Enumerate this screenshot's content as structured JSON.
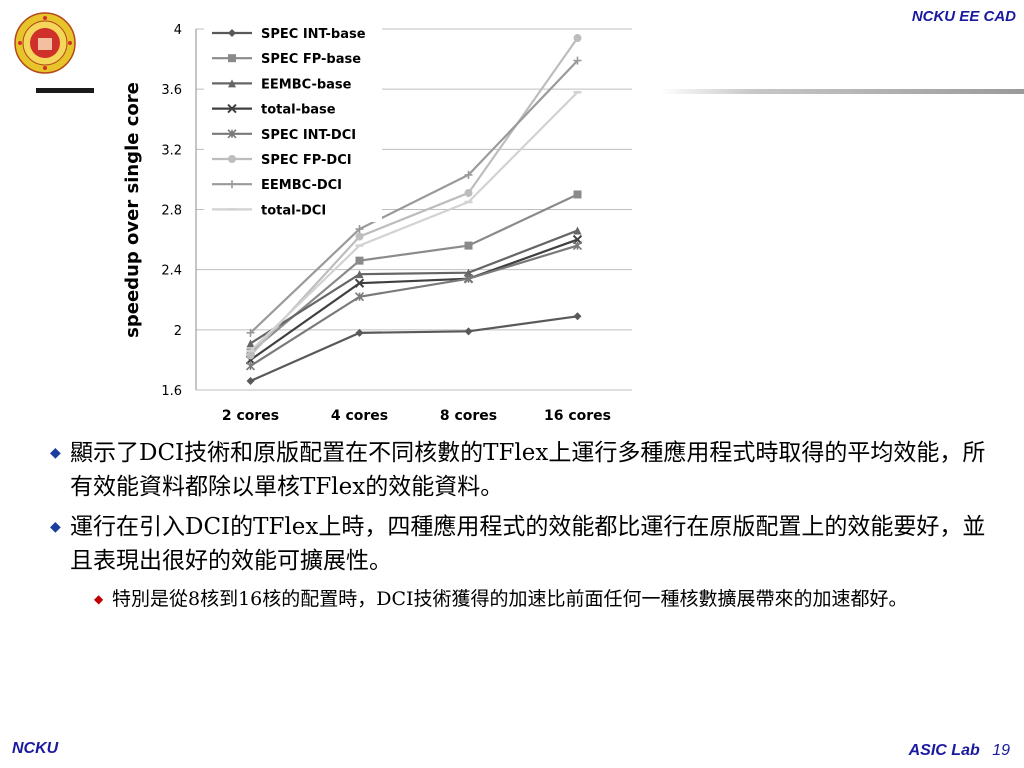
{
  "header": {
    "brand": "NCKU EE CAD"
  },
  "footer": {
    "left": "NCKU",
    "lab": "ASIC Lab",
    "page": "19"
  },
  "bullets": [
    {
      "text": "顯示了DCI技術和原版配置在不同核數的TFlex上運行多種應用程式時取得的平均效能，所有效能資料都除以單核TFlex的效能資料。"
    },
    {
      "text": "運行在引入DCI的TFlex上時，四種應用程式的效能都比運行在原版配置上的效能要好，並且表現出很好的效能可擴展性。"
    }
  ],
  "sub_bullets": [
    {
      "text": "特別是從8核到16核的配置時，DCI技術獲得的加速比前面任何一種核數擴展帶來的加速都好。"
    }
  ],
  "chart_data": {
    "type": "line",
    "categories": [
      "2 cores",
      "4 cores",
      "8 cores",
      "16 cores"
    ],
    "ylabel": "speedup over single core",
    "xlabel": "",
    "ylim": [
      1.6,
      4
    ],
    "yticks": [
      "1.6",
      "2",
      "2.4",
      "2.8",
      "3.2",
      "3.6",
      "4"
    ],
    "grid": true,
    "legend_position": "top-left",
    "series": [
      {
        "name": "SPEC INT-base",
        "values": [
          1.66,
          1.98,
          1.99,
          2.09
        ],
        "color": "#595959",
        "marker": "diamond"
      },
      {
        "name": "SPEC FP-base",
        "values": [
          1.85,
          2.46,
          2.56,
          2.9
        ],
        "color": "#8a8a8a",
        "marker": "square"
      },
      {
        "name": "EEMBC-base",
        "values": [
          1.91,
          2.37,
          2.38,
          2.66
        ],
        "color": "#666666",
        "marker": "triangle"
      },
      {
        "name": "total-base",
        "values": [
          1.8,
          2.31,
          2.34,
          2.6
        ],
        "color": "#404040",
        "marker": "x"
      },
      {
        "name": "SPEC INT-DCI",
        "values": [
          1.76,
          2.22,
          2.34,
          2.56
        ],
        "color": "#7a7a7a",
        "marker": "star"
      },
      {
        "name": "SPEC FP-DCI",
        "values": [
          1.83,
          2.62,
          2.91,
          3.94
        ],
        "color": "#bdbdbd",
        "marker": "circle"
      },
      {
        "name": "EEMBC-DCI",
        "values": [
          1.98,
          2.67,
          3.03,
          3.79
        ],
        "color": "#9a9a9a",
        "marker": "plus"
      },
      {
        "name": "total-DCI",
        "values": [
          1.86,
          2.56,
          2.85,
          3.58
        ],
        "color": "#d2d2d2",
        "marker": "dash"
      }
    ]
  }
}
